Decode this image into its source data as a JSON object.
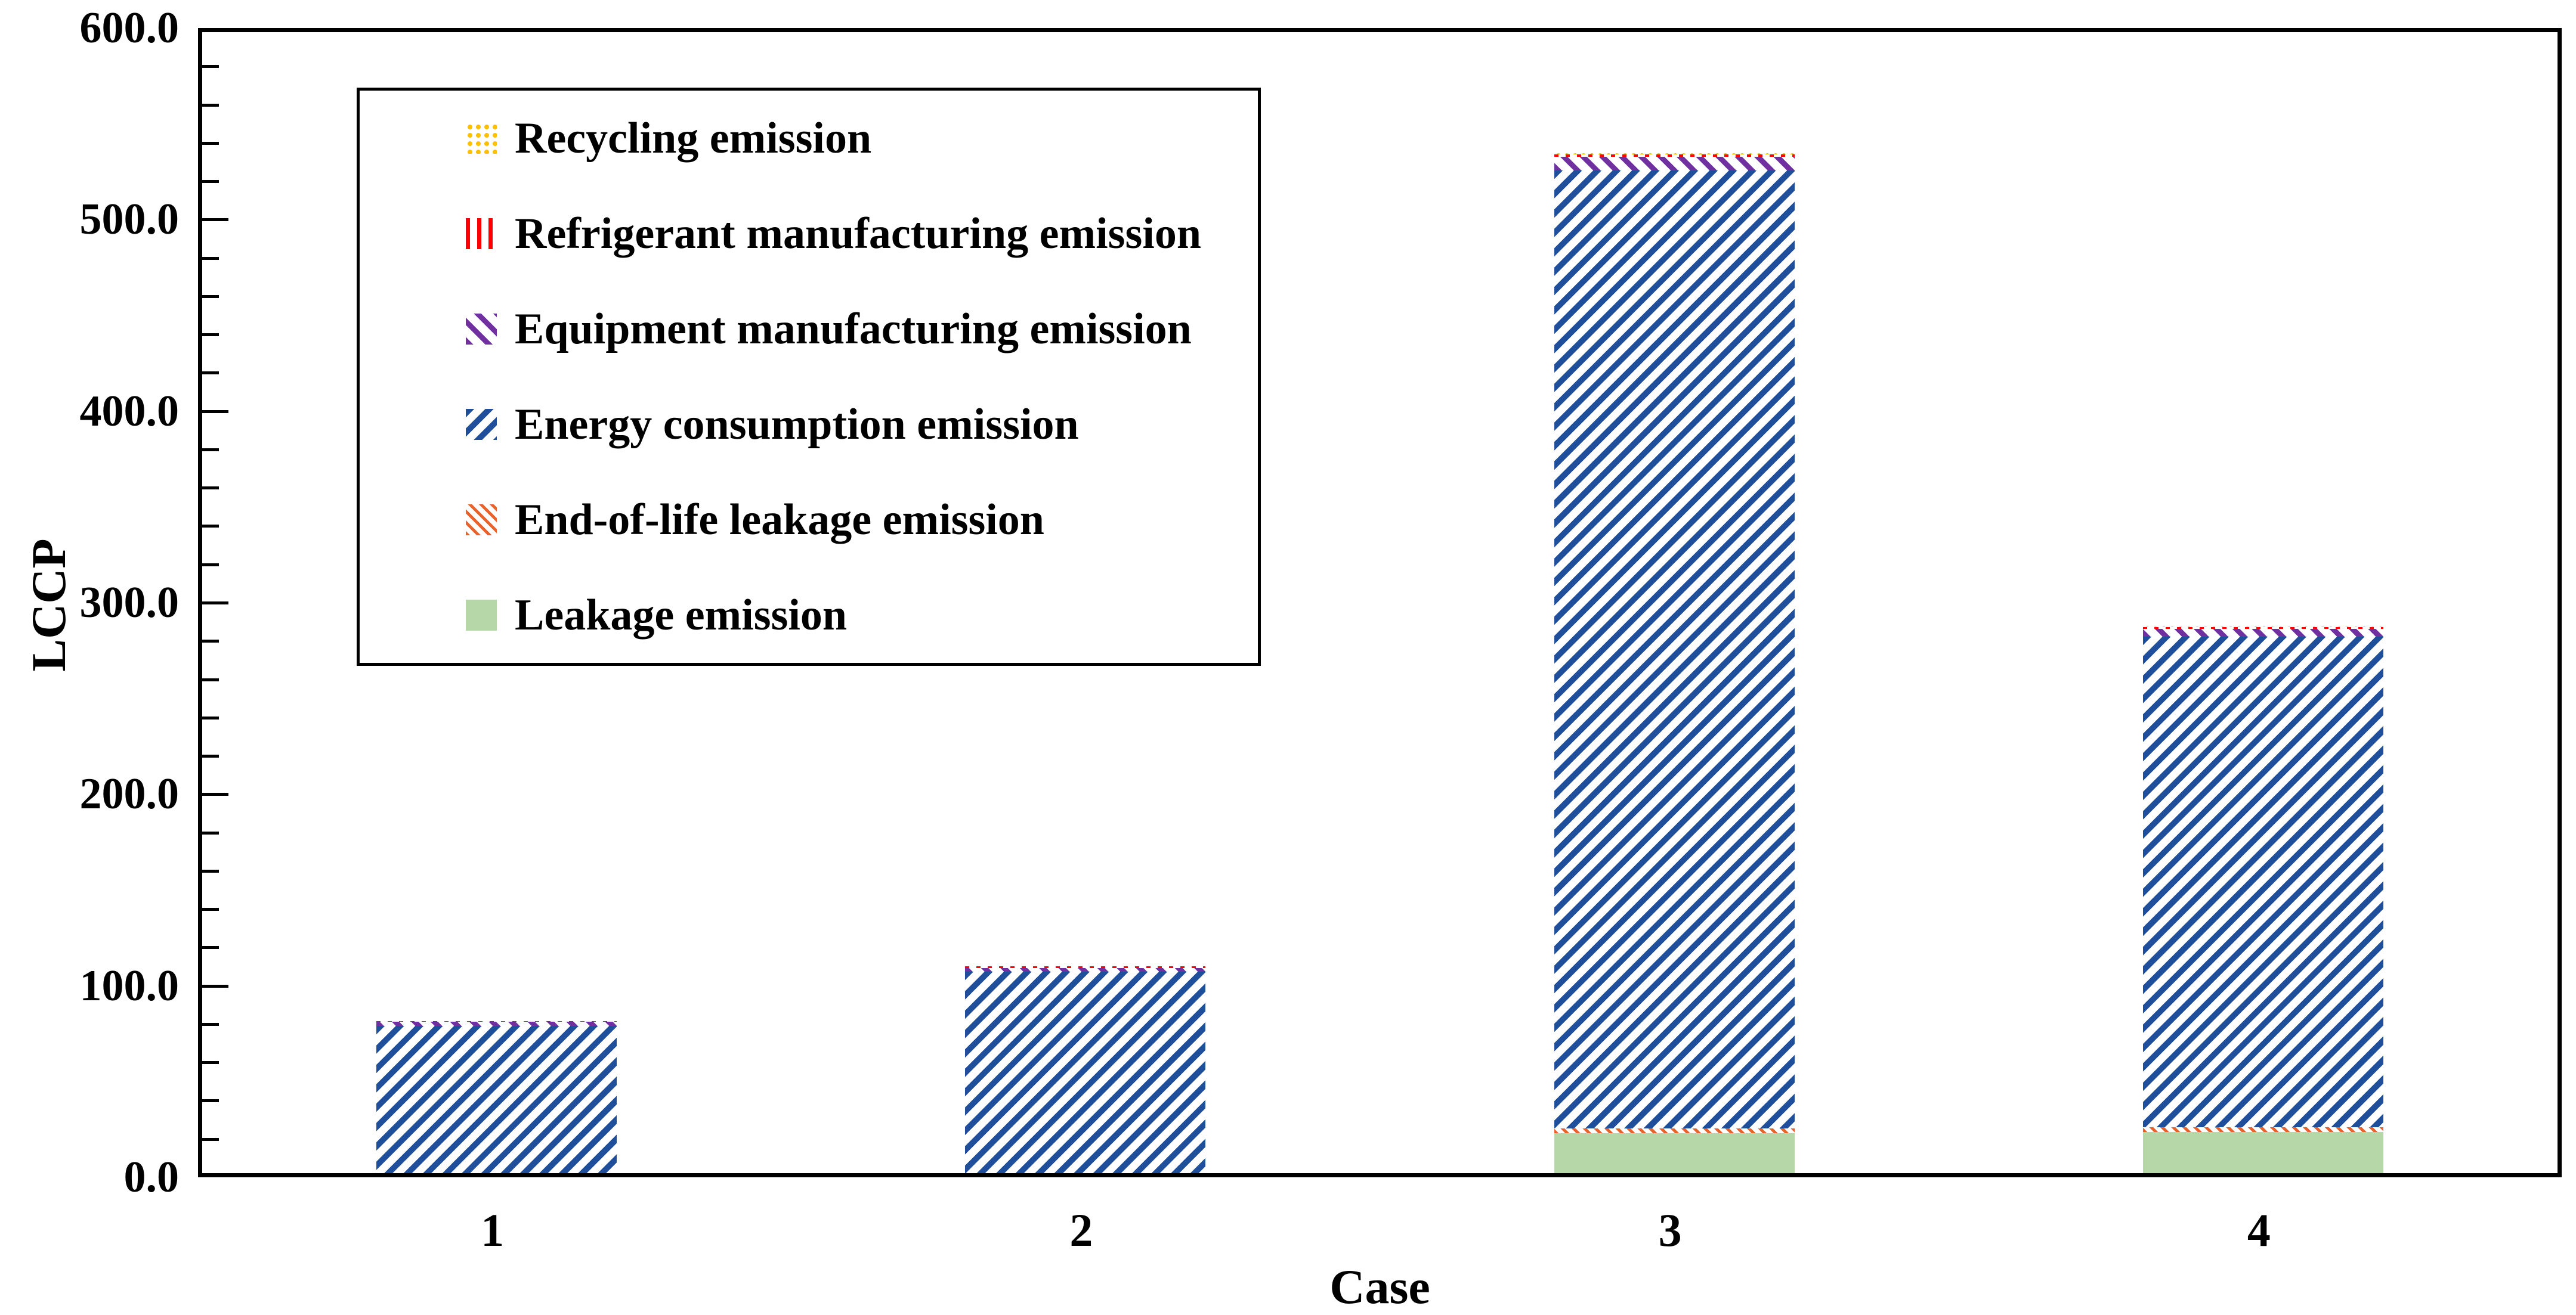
{
  "chart_data": {
    "type": "bar",
    "stacked": true,
    "title": "",
    "xlabel": "Case",
    "ylabel": "LCCP",
    "ylim": [
      0,
      600
    ],
    "ytick_interval": 100,
    "ytick_minor_interval": 20,
    "ytick_labels": [
      "0.0",
      "100.0",
      "200.0",
      "300.0",
      "400.0",
      "500.0",
      "600.0"
    ],
    "grid": false,
    "categories": [
      "1",
      "2",
      "3",
      "4"
    ],
    "series": [
      {
        "key": "leakage",
        "name": "Leakage emission",
        "color": "#B6D7A8",
        "pattern": "solid-green",
        "values": [
          0,
          0,
          21,
          21.5
        ]
      },
      {
        "key": "endoflife",
        "name": "End-of-life leakage emission",
        "color": "#E8632C",
        "pattern": "orange-dotted-hatch",
        "values": [
          0,
          0,
          2.5,
          2.5
        ]
      },
      {
        "key": "energy",
        "name": "Energy consumption emission",
        "color": "#1F4E9B",
        "pattern": "blue-diagonal-hatch",
        "values": [
          77,
          105.2,
          500,
          256
        ]
      },
      {
        "key": "equipment",
        "name": "Equipment manufacturing emission",
        "color": "#7030A0",
        "pattern": "purple-back-diagonal",
        "values": [
          2,
          2,
          7,
          4
        ]
      },
      {
        "key": "refrigerant",
        "name": "Refrigerant manufacturing emission",
        "color": "#FF0000",
        "pattern": "red-vertical-lines",
        "values": [
          0.3,
          0.8,
          1.5,
          1.2
        ]
      },
      {
        "key": "recycling",
        "name": "Recycling emission",
        "color": "#FFC000",
        "pattern": "yellow-dots",
        "values": [
          0.8,
          0.7,
          1.4,
          1
        ]
      }
    ],
    "approx_totals": [
      80.1,
      108.7,
      533.4,
      286.2
    ],
    "legend": {
      "position": "upper-left",
      "order": [
        "recycling",
        "refrigerant",
        "equipment",
        "energy",
        "endoflife",
        "leakage"
      ]
    }
  }
}
